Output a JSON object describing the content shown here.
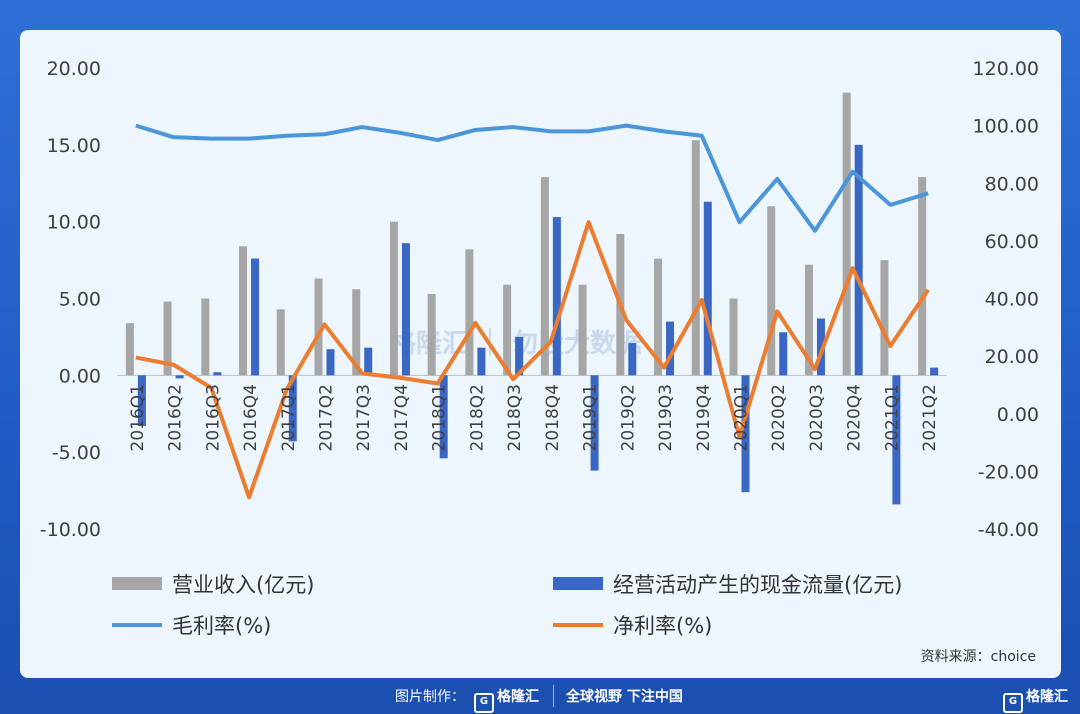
{
  "chart_data": {
    "type": "bar",
    "categories": [
      "2016Q1",
      "2016Q2",
      "2016Q3",
      "2016Q4",
      "2017Q1",
      "2017Q2",
      "2017Q3",
      "2017Q4",
      "2018Q1",
      "2018Q2",
      "2018Q3",
      "2018Q4",
      "2019Q1",
      "2019Q2",
      "2019Q3",
      "2019Q4",
      "2020Q1",
      "2020Q2",
      "2020Q3",
      "2020Q4",
      "2021Q1",
      "2021Q2"
    ],
    "left_axis": {
      "min": -10,
      "max": 20,
      "ticks": [
        "20.00",
        "15.00",
        "10.00",
        "5.00",
        "0.00",
        "-5.00",
        "-10.00"
      ]
    },
    "right_axis": {
      "min": -40,
      "max": 120,
      "ticks": [
        "120.00",
        "100.00",
        "80.00",
        "60.00",
        "40.00",
        "20.00",
        "0.00",
        "-20.00",
        "-40.00"
      ]
    },
    "bar_series": [
      {
        "name": "营业收入(亿元)",
        "color": "#a6a6a6",
        "axis": "left",
        "values": [
          3.4,
          4.8,
          5.0,
          8.4,
          4.3,
          6.3,
          5.6,
          10.0,
          5.3,
          8.2,
          5.9,
          12.9,
          5.9,
          9.2,
          7.6,
          15.3,
          5.0,
          11.0,
          7.2,
          18.4,
          7.5,
          12.9
        ]
      },
      {
        "name": "经营活动产生的现金流量(亿元)",
        "color": "#3a66c4",
        "axis": "left",
        "values": [
          -3.3,
          -0.2,
          0.2,
          7.6,
          -4.3,
          1.7,
          1.8,
          8.6,
          -5.4,
          1.8,
          2.5,
          10.3,
          -6.2,
          2.1,
          3.5,
          11.3,
          -7.6,
          2.8,
          3.7,
          15.0,
          -8.4,
          0.5
        ]
      }
    ],
    "line_series": [
      {
        "name": "毛利率(%)",
        "color": "#4a96d8",
        "axis": "right",
        "values": [
          100,
          96,
          95.5,
          95.5,
          96.5,
          97,
          99.5,
          97.5,
          95,
          98.5,
          99.5,
          98,
          98,
          100,
          98,
          96.5,
          66.5,
          81.5,
          63.5,
          84,
          72.5,
          76.5
        ]
      },
      {
        "name": "净利率(%)",
        "color": "#ec7c30",
        "axis": "right",
        "values": [
          19.5,
          17,
          9,
          -29,
          8.5,
          31,
          14,
          12.5,
          10.5,
          31.5,
          12,
          25,
          66.5,
          32.5,
          16,
          39.5,
          -8,
          35.5,
          15.5,
          50.5,
          23.5,
          43
        ]
      }
    ],
    "legend": [
      "营业收入(亿元)",
      "经营活动产生的现金流量(亿元)",
      "毛利率(%)",
      "净利率(%)"
    ],
    "source": "资料来源：choice",
    "watermark": "格隆汇 ｜ 勿股大数据"
  },
  "footer": {
    "label": "图片制作：",
    "logo": "格隆汇",
    "slogan": "全球视野 下注中国",
    "corner_logo": "格隆汇"
  }
}
